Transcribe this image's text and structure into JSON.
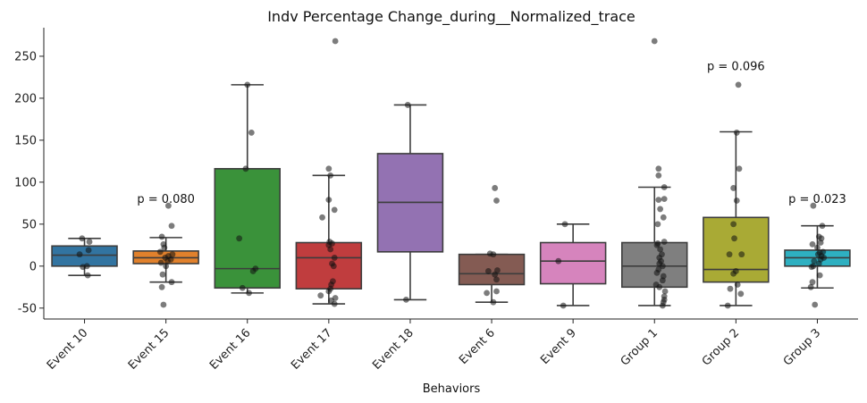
{
  "chart_data": {
    "type": "box",
    "title": "Indv Percentage Change_during__Normalized_trace",
    "xlabel": "Behaviors",
    "ylabel": "",
    "ylim": [
      -63,
      284
    ],
    "yticks": [
      -50,
      0,
      50,
      100,
      150,
      200,
      250
    ],
    "grid": false,
    "categories": [
      "Event 10",
      "Event 15",
      "Event 16",
      "Event 17",
      "Event 18",
      "Event 6",
      "Event 9",
      "Group 1",
      "Group 2",
      "Group 3"
    ],
    "colors": [
      "#3274a1",
      "#e1812c",
      "#3a923a",
      "#c03d3e",
      "#9372b2",
      "#845b53",
      "#d684bd",
      "#7f7f7f",
      "#a9aa35",
      "#2eb0c1"
    ],
    "boxes": [
      {
        "q1": 0,
        "median": 13,
        "q3": 24,
        "whislo": -11,
        "whishi": 33
      },
      {
        "q1": 3,
        "median": 10,
        "q3": 18,
        "whislo": -19,
        "whishi": 34
      },
      {
        "q1": -26,
        "median": -3,
        "q3": 116,
        "whislo": -32,
        "whishi": 216
      },
      {
        "q1": -27,
        "median": 10,
        "q3": 28,
        "whislo": -45,
        "whishi": 108
      },
      {
        "q1": 17,
        "median": 76,
        "q3": 134,
        "whislo": -40,
        "whishi": 192
      },
      {
        "q1": -22,
        "median": -9,
        "q3": 14,
        "whislo": -43,
        "whishi": 14
      },
      {
        "q1": -21,
        "median": 6,
        "q3": 28,
        "whislo": -47,
        "whishi": 50
      },
      {
        "q1": -25,
        "median": 0,
        "q3": 28,
        "whislo": -47,
        "whishi": 94
      },
      {
        "q1": -19,
        "median": -4,
        "q3": 58,
        "whislo": -47,
        "whishi": 160
      },
      {
        "q1": 0,
        "median": 10,
        "q3": 19,
        "whislo": -26,
        "whishi": 48
      }
    ],
    "points": [
      [
        [
          -11,
          0.04
        ],
        [
          -1,
          -0.02
        ],
        [
          0,
          0.03
        ],
        [
          14,
          -0.06
        ],
        [
          19,
          0.05
        ],
        [
          29,
          0.06
        ],
        [
          33,
          -0.03
        ]
      ],
      [
        [
          -46,
          -0.03
        ],
        [
          -25,
          -0.05
        ],
        [
          -19,
          0.07
        ],
        [
          -10,
          -0.04
        ],
        [
          0,
          0.0
        ],
        [
          4,
          -0.06
        ],
        [
          6,
          0.02
        ],
        [
          8,
          0.06
        ],
        [
          10,
          -0.01
        ],
        [
          12,
          0.03
        ],
        [
          14,
          0.08
        ],
        [
          17,
          -0.07
        ],
        [
          22,
          -0.02
        ],
        [
          26,
          -0.03
        ],
        [
          35,
          -0.05
        ],
        [
          48,
          0.07
        ],
        [
          72,
          0.03
        ]
      ],
      [
        [
          -32,
          0.02
        ],
        [
          -26,
          -0.06
        ],
        [
          -6,
          0.07
        ],
        [
          -3,
          0.1
        ],
        [
          33,
          -0.1
        ],
        [
          116,
          -0.02
        ],
        [
          159,
          0.05
        ],
        [
          216,
          0.0
        ]
      ],
      [
        [
          -45,
          0.07
        ],
        [
          -41,
          0.03
        ],
        [
          -38,
          0.08
        ],
        [
          -35,
          -0.1
        ],
        [
          -30,
          0.0
        ],
        [
          -27,
          0.02
        ],
        [
          -22,
          0.03
        ],
        [
          -18,
          0.05
        ],
        [
          0,
          0.06
        ],
        [
          3,
          0.04
        ],
        [
          10,
          0.07
        ],
        [
          20,
          0.02
        ],
        [
          25,
          0.0
        ],
        [
          27,
          0.04
        ],
        [
          29,
          0.01
        ],
        [
          58,
          -0.08
        ],
        [
          67,
          0.07
        ],
        [
          79,
          0.0
        ],
        [
          108,
          0.02
        ],
        [
          116,
          0.0
        ],
        [
          268,
          0.08
        ]
      ],
      [
        [
          -40,
          -0.05
        ],
        [
          192,
          -0.03
        ]
      ],
      [
        [
          -43,
          0.02
        ],
        [
          -30,
          0.06
        ],
        [
          -32,
          -0.06
        ],
        [
          -16,
          0.06
        ],
        [
          -10,
          0.04
        ],
        [
          -6,
          -0.04
        ],
        [
          -5,
          0.07
        ],
        [
          14,
          0.02
        ],
        [
          15,
          -0.02
        ],
        [
          78,
          0.06
        ],
        [
          93,
          0.04
        ]
      ],
      [
        [
          -47,
          -0.12
        ],
        [
          6,
          -0.18
        ],
        [
          50,
          -0.1
        ]
      ],
      [
        [
          -47,
          0.1
        ],
        [
          -43,
          0.11
        ],
        [
          -40,
          0.12
        ],
        [
          -36,
          0.12
        ],
        [
          -30,
          0.13
        ],
        [
          -25,
          0.06
        ],
        [
          -22,
          0.02
        ],
        [
          -17,
          0.1
        ],
        [
          -12,
          0.11
        ],
        [
          -8,
          0.03
        ],
        [
          -4,
          0.05
        ],
        [
          0,
          0.1
        ],
        [
          3,
          0.06
        ],
        [
          6,
          0.08
        ],
        [
          10,
          0.06
        ],
        [
          14,
          0.09
        ],
        [
          20,
          0.07
        ],
        [
          25,
          0.03
        ],
        [
          27,
          0.04
        ],
        [
          29,
          0.12
        ],
        [
          50,
          0.04
        ],
        [
          58,
          0.11
        ],
        [
          68,
          0.07
        ],
        [
          79,
          0.05
        ],
        [
          80,
          0.12
        ],
        [
          94,
          0.12
        ],
        [
          108,
          0.05
        ],
        [
          116,
          0.05
        ],
        [
          268,
          0.0
        ]
      ],
      [
        [
          -47,
          -0.1
        ],
        [
          -33,
          0.06
        ],
        [
          -27,
          -0.07
        ],
        [
          -22,
          0.02
        ],
        [
          -9,
          -0.03
        ],
        [
          -6,
          0.0
        ],
        [
          14,
          -0.08
        ],
        [
          14,
          0.07
        ],
        [
          33,
          -0.02
        ],
        [
          50,
          -0.03
        ],
        [
          78,
          0.01
        ],
        [
          93,
          -0.03
        ],
        [
          116,
          0.04
        ],
        [
          159,
          0.01
        ],
        [
          216,
          0.03
        ]
      ],
      [
        [
          -46,
          -0.03
        ],
        [
          -25,
          -0.08
        ],
        [
          -19,
          -0.06
        ],
        [
          -11,
          0.03
        ],
        [
          -1,
          -0.07
        ],
        [
          0,
          -0.05
        ],
        [
          3,
          0.02
        ],
        [
          6,
          -0.04
        ],
        [
          8,
          0.04
        ],
        [
          10,
          0.08
        ],
        [
          12,
          0.05
        ],
        [
          14,
          0.01
        ],
        [
          16,
          0.03
        ],
        [
          17,
          0.07
        ],
        [
          22,
          0.0
        ],
        [
          26,
          -0.06
        ],
        [
          28,
          0.04
        ],
        [
          33,
          0.05
        ],
        [
          35,
          0.02
        ],
        [
          48,
          0.06
        ],
        [
          72,
          -0.05
        ]
      ]
    ],
    "annotations": [
      {
        "category_index": 1,
        "y": 80,
        "text": "p = 0.080"
      },
      {
        "category_index": 8,
        "y": 238,
        "text": "p = 0.096"
      },
      {
        "category_index": 9,
        "y": 80,
        "text": "p = 0.023"
      }
    ]
  }
}
